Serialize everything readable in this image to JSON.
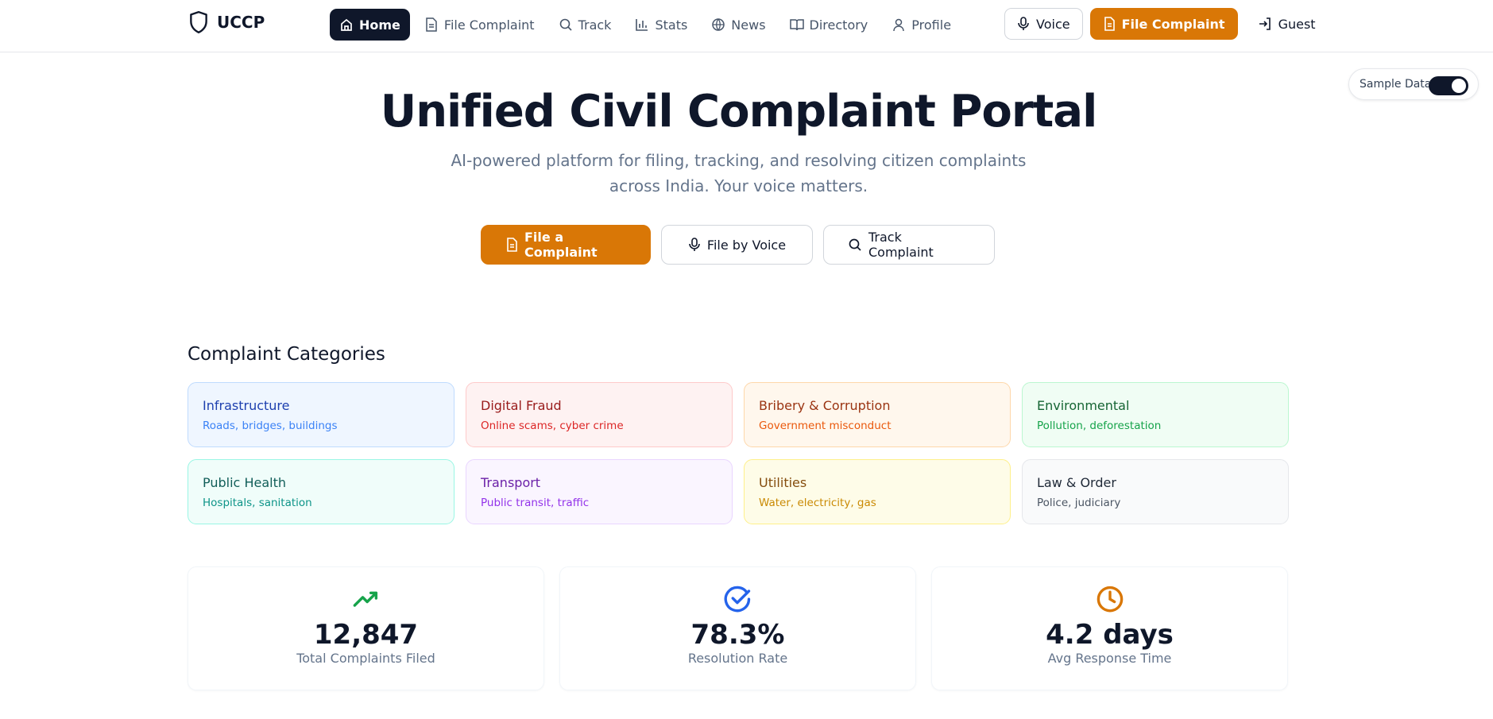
{
  "nav": {
    "brand": "UCCP",
    "links": [
      "Home",
      "File Complaint",
      "Track",
      "Stats",
      "News",
      "Directory",
      "Profile"
    ],
    "actions": [
      "Voice",
      "File Complaint",
      "Guest"
    ]
  },
  "toggle": {
    "label": "Sample Data"
  },
  "hero": {
    "title": "Unified Civil Complaint Portal",
    "subtitle": "AI-powered platform for filing, tracking, and resolving citizen complaints across India. Your voice matters.",
    "buttons": [
      "File a Complaint",
      "File by Voice",
      "Track Complaint"
    ]
  },
  "categories": {
    "heading": "Complaint Categories",
    "items": [
      {
        "title": "Infrastructure",
        "desc": "Roads, bridges, buildings"
      },
      {
        "title": "Digital Fraud",
        "desc": "Online scams, cyber crime"
      },
      {
        "title": "Bribery & Corruption",
        "desc": "Government misconduct"
      },
      {
        "title": "Environmental",
        "desc": "Pollution, deforestation"
      },
      {
        "title": "Public Health",
        "desc": "Hospitals, sanitation"
      },
      {
        "title": "Transport",
        "desc": "Public transit, traffic"
      },
      {
        "title": "Utilities",
        "desc": "Water, electricity, gas"
      },
      {
        "title": "Law & Order",
        "desc": "Police, judiciary"
      }
    ]
  },
  "stats": [
    {
      "value": "12,847",
      "label": "Total Complaints Filed"
    },
    {
      "value": "78.3%",
      "label": "Resolution Rate"
    },
    {
      "value": "4.2 days",
      "label": "Avg Response Time"
    }
  ]
}
